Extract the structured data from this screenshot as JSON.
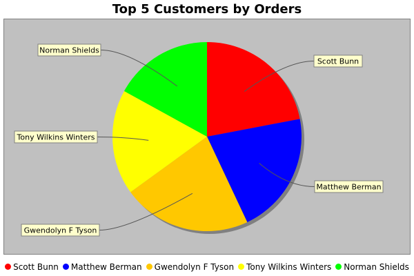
{
  "chart_data": {
    "type": "pie",
    "title": "Top 5 Customers by Orders",
    "labels": [
      "Scott Bunn",
      "Matthew Berman",
      "Gwendolyn F Tyson",
      "Tony Wilkins Winters",
      "Norman Shields"
    ],
    "values": [
      22,
      21,
      22,
      18,
      17
    ],
    "colors": [
      "#ff0000",
      "#0000ff",
      "#ffc800",
      "#ffff00",
      "#00ff00"
    ],
    "legend_position": "bottom"
  }
}
